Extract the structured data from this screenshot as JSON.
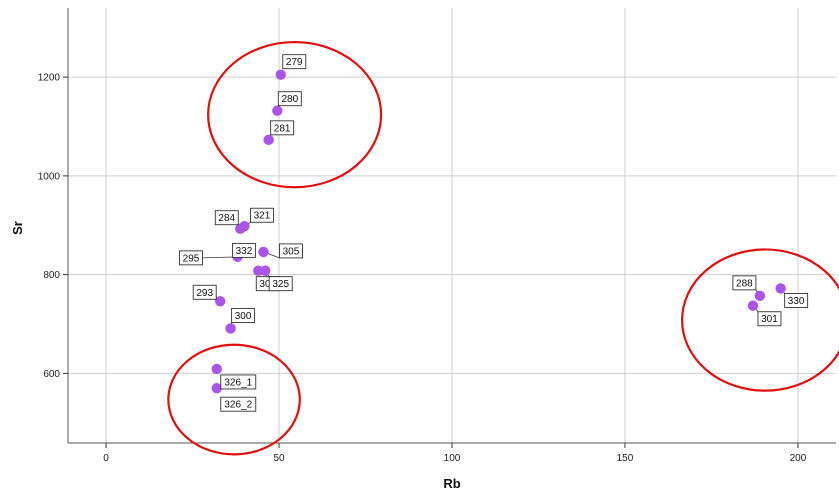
{
  "chart_data": {
    "type": "scatter",
    "xlabel": "Rb",
    "ylabel": "Sr",
    "xlim": [
      -11,
      211
    ],
    "ylim": [
      459,
      1340
    ],
    "xticks": [
      0,
      50,
      100,
      150,
      200
    ],
    "yticks": [
      600,
      800,
      1000,
      1200
    ],
    "grid": true,
    "point_color": "#a855e8",
    "highlight_color": "#e01010",
    "points": [
      {
        "label": "279",
        "x": 50.5,
        "y": 1205
      },
      {
        "label": "280",
        "x": 49.5,
        "y": 1132
      },
      {
        "label": "281",
        "x": 47.0,
        "y": 1073
      },
      {
        "label": "321",
        "x": 40.0,
        "y": 898
      },
      {
        "label": "284",
        "x": 38.8,
        "y": 893
      },
      {
        "label": "332",
        "x": 40.0,
        "y": 847
      },
      {
        "label": "305",
        "x": 45.5,
        "y": 846
      },
      {
        "label": "295",
        "x": 38.0,
        "y": 836
      },
      {
        "label": "306",
        "x": 44.0,
        "y": 808
      },
      {
        "label": "325",
        "x": 46.0,
        "y": 808
      },
      {
        "label": "293",
        "x": 33.0,
        "y": 746
      },
      {
        "label": "300",
        "x": 36.0,
        "y": 691
      },
      {
        "label": "326_1",
        "x": 32.0,
        "y": 609
      },
      {
        "label": "326_2",
        "x": 32.0,
        "y": 570
      },
      {
        "label": "288",
        "x": 189.0,
        "y": 757
      },
      {
        "label": "330",
        "x": 195.0,
        "y": 772
      },
      {
        "label": "301",
        "x": 187.0,
        "y": 737
      }
    ],
    "highlight_ellipses": [
      {
        "center": [
          54.5,
          1124
        ],
        "x_radius": 25.0,
        "y_radius": 147
      },
      {
        "center": [
          190.5,
          708
        ],
        "x_radius": 24.0,
        "y_radius": 143
      },
      {
        "center": [
          37.0,
          547
        ],
        "x_radius": 19.0,
        "y_radius": 111
      }
    ]
  }
}
